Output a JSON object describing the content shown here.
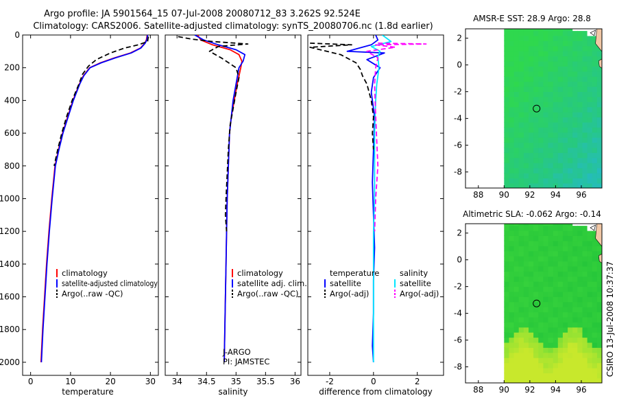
{
  "header": {
    "title_line1": "Argo profile: JA 5901564_15 07-Jul-2008 20080712_83 3.262S 92.524E",
    "title_line2": "Climatology: CARS2006. Satellite-adjusted climatology: synTS_20080706.nc (1.8d earlier)"
  },
  "credit": "CSIRO 13-Jul-2008 10:37:37",
  "colors": {
    "climatology": "#ff0000",
    "satellite": "#0000ff",
    "argo": "#000000",
    "sal_satellite": "#00e5ff",
    "sal_argo": "#ff00ff",
    "land": "#f2c8a6"
  },
  "chart_data": [
    {
      "type": "line",
      "title": "",
      "xlabel": "temperature",
      "ylabel": "",
      "xlim": [
        -2,
        32
      ],
      "ylim": [
        2080,
        0
      ],
      "xticks": [
        0,
        10,
        20,
        30
      ],
      "yticks": [
        0,
        200,
        400,
        600,
        800,
        1000,
        1200,
        1400,
        1600,
        1800,
        2000
      ],
      "legend": {
        "position": "lower-right",
        "items": [
          "climatology",
          "satellite-adjusted climatology",
          "Argo(..raw -QC)"
        ]
      },
      "series": [
        {
          "name": "climatology",
          "color": "#ff0000",
          "dash": "solid",
          "x": [
            29.2,
            29.0,
            28.6,
            27.5,
            25.0,
            21.0,
            17.5,
            14.8,
            13.2,
            12.2,
            10.6,
            9.3,
            8.0,
            7.0,
            6.1,
            5.3,
            4.6,
            4.0,
            3.5,
            3.0,
            2.6
          ],
          "y": [
            0,
            30,
            50,
            80,
            110,
            140,
            170,
            200,
            250,
            300,
            400,
            500,
            600,
            700,
            800,
            1000,
            1200,
            1400,
            1600,
            1800,
            2000
          ]
        },
        {
          "name": "satellite-adjusted climatology",
          "color": "#0000ff",
          "dash": "solid",
          "x": [
            29.3,
            29.1,
            28.7,
            27.6,
            25.2,
            21.2,
            17.7,
            14.9,
            13.3,
            12.3,
            10.7,
            9.4,
            8.1,
            7.1,
            6.2,
            5.4,
            4.7,
            4.1,
            3.6,
            3.1,
            2.7
          ],
          "y": [
            0,
            30,
            50,
            80,
            110,
            140,
            170,
            200,
            250,
            300,
            400,
            500,
            600,
            700,
            800,
            1000,
            1200,
            1400,
            1600,
            1800,
            2000
          ]
        },
        {
          "name": "Argo(..raw -QC)",
          "color": "#000000",
          "dash": "dashed",
          "x": [
            29.5,
            29.3,
            27.0,
            23.5,
            20.0,
            16.5,
            14.5,
            13.0,
            12.1,
            10.4,
            9.0,
            7.8,
            6.8,
            5.9
          ],
          "y": [
            10,
            40,
            60,
            80,
            110,
            150,
            190,
            240,
            300,
            400,
            500,
            600,
            700,
            800
          ]
        }
      ]
    },
    {
      "type": "line",
      "title": "",
      "xlabel": "salinity",
      "ylabel": "",
      "xlim": [
        33.8,
        36.1
      ],
      "ylim": [
        2080,
        0
      ],
      "xticks": [
        34,
        34.5,
        35,
        35.5,
        36
      ],
      "yticks": [
        0,
        200,
        400,
        600,
        800,
        1000,
        1200,
        1400,
        1600,
        1800,
        2000
      ],
      "legend": {
        "position": "lower-right",
        "items": [
          "climatology",
          "satellite adj. clim.",
          "Argo(..raw -QC)"
        ]
      },
      "annotations": [
        "J-ARGO",
        "PI: JAMSTEC"
      ],
      "series": [
        {
          "name": "climatology",
          "color": "#ff0000",
          "dash": "solid",
          "x": [
            34.35,
            34.4,
            34.6,
            34.9,
            35.05,
            35.1,
            35.08,
            35.02,
            34.97,
            34.92,
            34.89,
            34.87,
            34.85,
            34.84,
            34.83,
            34.82,
            34.8
          ],
          "y": [
            0,
            30,
            60,
            90,
            120,
            160,
            200,
            300,
            400,
            500,
            600,
            800,
            1000,
            1200,
            1400,
            1600,
            2000
          ]
        },
        {
          "name": "satellite adj. clim.",
          "color": "#0000ff",
          "dash": "solid",
          "x": [
            34.3,
            34.45,
            34.7,
            35.0,
            35.15,
            35.12,
            35.05,
            35.0,
            34.95,
            34.92,
            34.89,
            34.87,
            34.85,
            34.84,
            34.83,
            34.82,
            34.8
          ],
          "y": [
            0,
            30,
            60,
            90,
            120,
            160,
            200,
            300,
            400,
            500,
            600,
            800,
            1000,
            1200,
            1400,
            1600,
            2000
          ]
        },
        {
          "name": "Argo(..raw -QC)",
          "color": "#000000",
          "dash": "dashed",
          "x": [
            34.02,
            34.25,
            34.6,
            35.2,
            34.7,
            34.55,
            34.75,
            35.0,
            35.05,
            35.0,
            34.95,
            34.9,
            34.87,
            34.85,
            34.83,
            34.82,
            34.84
          ],
          "y": [
            10,
            25,
            40,
            55,
            70,
            100,
            140,
            200,
            260,
            350,
            450,
            550,
            700,
            850,
            1000,
            1100,
            1200
          ]
        }
      ]
    },
    {
      "type": "line",
      "title": "",
      "xlabel": "difference from climatology",
      "ylabel": "",
      "xlim": [
        -3,
        3.2
      ],
      "ylim": [
        2080,
        0
      ],
      "xticks": [
        -2,
        0,
        2
      ],
      "yticks": [
        0,
        200,
        400,
        600,
        800,
        1000,
        1200,
        1400,
        1600,
        1800,
        2000
      ],
      "legend": {
        "position": "lower-right",
        "groups": [
          "temperature",
          "salinity"
        ],
        "items": [
          "satellite",
          "Argo(-adj)",
          "satellite",
          "Argo(-adj)"
        ]
      },
      "series": [
        {
          "name": "temperature satellite",
          "color": "#0000ff",
          "dash": "solid",
          "x": [
            0.1,
            0.2,
            -0.1,
            -1.2,
            0.5,
            -0.3,
            0.3,
            0.0,
            -0.1,
            0.05,
            0.0,
            -0.05,
            0.0,
            0.05,
            0.0,
            0.0,
            -0.05,
            0.0
          ],
          "y": [
            0,
            30,
            60,
            100,
            110,
            150,
            200,
            260,
            350,
            500,
            700,
            900,
            1100,
            1300,
            1500,
            1700,
            1900,
            2000
          ]
        },
        {
          "name": "temperature Argo(-adj)",
          "color": "#000000",
          "dash": "dashed",
          "x": [
            -2.9,
            -1.0,
            -2.9,
            -1.5,
            -0.8,
            -0.6,
            -0.5,
            -0.3,
            -0.2,
            -0.1,
            0.0,
            -0.05,
            0.0
          ],
          "y": [
            50,
            60,
            75,
            120,
            170,
            210,
            250,
            300,
            350,
            400,
            500,
            600,
            700
          ]
        },
        {
          "name": "salinity satellite",
          "color": "#00e5ff",
          "dash": "solid",
          "x": [
            0.4,
            0.8,
            -0.1,
            0.3,
            0.2,
            0.25,
            0.15,
            0.1,
            0.05,
            0.05,
            0.05,
            0.0,
            0.0,
            0.0,
            0.0,
            0.0
          ],
          "y": [
            0,
            40,
            70,
            100,
            130,
            200,
            300,
            400,
            600,
            800,
            1000,
            1200,
            1400,
            1600,
            1800,
            2000
          ]
        },
        {
          "name": "salinity Argo(-adj)",
          "color": "#ff00ff",
          "dash": "dashed",
          "x": [
            0.2,
            2.4,
            0.1,
            1.0,
            -0.3,
            0.2,
            0.1,
            0.05,
            0.1,
            0.2,
            0.1,
            0.05
          ],
          "y": [
            50,
            55,
            60,
            75,
            100,
            140,
            200,
            300,
            500,
            800,
            1000,
            1200
          ]
        }
      ]
    },
    {
      "type": "heatmap",
      "title": "AMSR-E SST: 28.9 Argo: 28.8",
      "xticks": [
        88,
        90,
        92,
        94,
        96
      ],
      "yticks": [
        2,
        0,
        -2,
        -4,
        -6,
        -8
      ],
      "xlim": [
        87,
        97.6
      ],
      "ylim": [
        -9.2,
        2.7
      ],
      "marker": {
        "lon": 92.524,
        "lat": -3.262
      },
      "colors": [
        "#2fd84e",
        "#27c97f",
        "#24b7d2"
      ]
    },
    {
      "type": "heatmap",
      "title": "Altimetric SLA: -0.062 Argo: -0.14",
      "xticks": [
        88,
        90,
        92,
        94,
        96
      ],
      "yticks": [
        2,
        0,
        -2,
        -4,
        -6,
        -8
      ],
      "xlim": [
        87,
        97.6
      ],
      "ylim": [
        -9.2,
        2.7
      ],
      "marker": {
        "lon": 92.524,
        "lat": -3.262
      },
      "colors": [
        "#23c43a",
        "#3fd83d",
        "#c8e82c"
      ]
    }
  ]
}
